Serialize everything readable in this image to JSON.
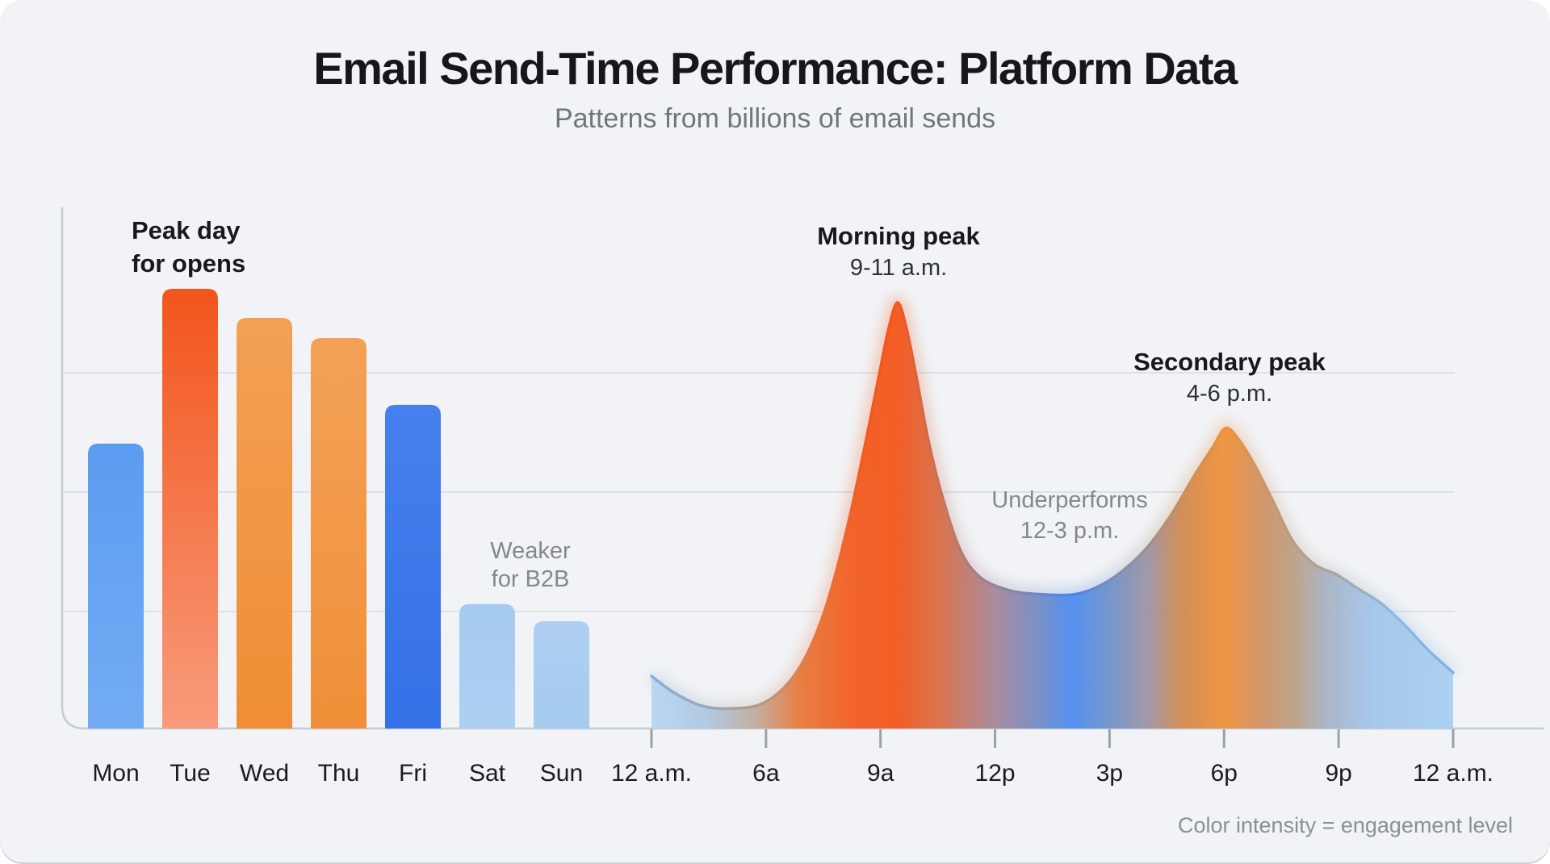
{
  "header": {
    "title": "Email Send-Time Performance: Platform Data",
    "subtitle": "Patterns from billions of email sends"
  },
  "footnote": "Color intensity = engagement level",
  "palette": {
    "background": "#F1F3F6",
    "grid": "#DDE0E6",
    "axis": "#C6CBD3",
    "tick": "#99A1AB",
    "bar_gradients": {
      "Mon": [
        "#5B9CF1",
        "#73ABF4"
      ],
      "Tue": [
        "#F2551C",
        "#F89B7B"
      ],
      "Wed": [
        "#F3A055",
        "#EF8E35"
      ],
      "Thu": [
        "#F3A157",
        "#F09038"
      ],
      "Fri": [
        "#4680EE",
        "#3471E6"
      ],
      "Sat": [
        "#A6CBF0",
        "#ADD0F2"
      ],
      "Sun": [
        "#AECFF2",
        "#A5CBEF"
      ]
    },
    "area_fill_stops": [
      [
        0,
        "#B7D6F3"
      ],
      [
        0.07,
        "#AFC8E2"
      ],
      [
        0.13,
        "#C2AC9C"
      ],
      [
        0.185,
        "#E97A3C"
      ],
      [
        0.255,
        "#F15D22"
      ],
      [
        0.306,
        "#F4581E"
      ],
      [
        0.36,
        "#D96F48"
      ],
      [
        0.43,
        "#A7889C"
      ],
      [
        0.475,
        "#7D8CBE"
      ],
      [
        0.525,
        "#4E8DF0"
      ],
      [
        0.565,
        "#6B93CF"
      ],
      [
        0.62,
        "#9F94A4"
      ],
      [
        0.66,
        "#D08B52"
      ],
      [
        0.715,
        "#F0923C"
      ],
      [
        0.76,
        "#D29366"
      ],
      [
        0.8,
        "#BCA184"
      ],
      [
        0.84,
        "#A9B3C2"
      ],
      [
        0.9,
        "#A3C6EA"
      ],
      [
        1,
        "#A9D0F2"
      ]
    ],
    "area_stroke_stops": [
      [
        0,
        "#85AEDC"
      ],
      [
        0.07,
        "#9FA8B8"
      ],
      [
        0.13,
        "#B59A8C"
      ],
      [
        0.2,
        "#E8793F"
      ],
      [
        0.27,
        "#F1591F"
      ],
      [
        0.306,
        "#F2561C"
      ],
      [
        0.37,
        "#BE7A66"
      ],
      [
        0.45,
        "#8588B0"
      ],
      [
        0.525,
        "#4A85E8"
      ],
      [
        0.58,
        "#7E8FB6"
      ],
      [
        0.65,
        "#C08F62"
      ],
      [
        0.715,
        "#EE9138"
      ],
      [
        0.78,
        "#C29878"
      ],
      [
        0.85,
        "#A8A59E"
      ],
      [
        0.93,
        "#8FBAE4"
      ],
      [
        1,
        "#7FB2E2"
      ]
    ]
  },
  "chart_data": [
    {
      "type": "bar",
      "title": "Email engagement by day of week",
      "categories": [
        "Mon",
        "Tue",
        "Wed",
        "Thu",
        "Fri",
        "Sat",
        "Sun"
      ],
      "values": [
        64.8,
        100,
        93.4,
        88.8,
        73.6,
        28.3,
        24.4
      ],
      "ylim": [
        0,
        100
      ],
      "grid": true,
      "annotations": [
        {
          "lines": [
            "Peak day",
            "for opens"
          ],
          "anchor": "Tue",
          "emphasis": true
        },
        {
          "lines": [
            "Weaker",
            "for B2B"
          ],
          "anchor": "Sat-Sun",
          "emphasis": false
        }
      ]
    },
    {
      "type": "area",
      "title": "Email engagement by time of day",
      "x_tick_labels": [
        "12 a.m.",
        "6a",
        "9a",
        "12p",
        "3p",
        "6p",
        "9p",
        "12 a.m."
      ],
      "ylim": [
        0,
        100
      ],
      "points": [
        [
          0.0,
          12.3
        ],
        [
          0.03,
          8.2
        ],
        [
          0.065,
          5.2
        ],
        [
          0.1,
          4.7
        ],
        [
          0.135,
          5.6
        ],
        [
          0.165,
          9.5
        ],
        [
          0.19,
          16.0
        ],
        [
          0.213,
          26.0
        ],
        [
          0.232,
          38.0
        ],
        [
          0.25,
          52.0
        ],
        [
          0.268,
          68.0
        ],
        [
          0.285,
          84.0
        ],
        [
          0.296,
          94.0
        ],
        [
          0.307,
          100.0
        ],
        [
          0.318,
          94.0
        ],
        [
          0.33,
          83.0
        ],
        [
          0.345,
          68.0
        ],
        [
          0.362,
          55.0
        ],
        [
          0.385,
          42.0
        ],
        [
          0.41,
          35.5
        ],
        [
          0.445,
          32.5
        ],
        [
          0.478,
          31.6
        ],
        [
          0.524,
          31.4
        ],
        [
          0.557,
          33.3
        ],
        [
          0.587,
          36.9
        ],
        [
          0.617,
          42.2
        ],
        [
          0.647,
          49.8
        ],
        [
          0.677,
          59.3
        ],
        [
          0.7,
          66.0
        ],
        [
          0.716,
          70.5
        ],
        [
          0.732,
          68.0
        ],
        [
          0.752,
          62.0
        ],
        [
          0.775,
          53.5
        ],
        [
          0.8,
          44.0
        ],
        [
          0.827,
          38.5
        ],
        [
          0.854,
          36.2
        ],
        [
          0.88,
          33.0
        ],
        [
          0.91,
          29.4
        ],
        [
          0.94,
          24.2
        ],
        [
          0.97,
          18.2
        ],
        [
          1.0,
          13.1
        ]
      ],
      "annotations": [
        {
          "lines": [
            "Morning peak",
            "9-11 a.m."
          ],
          "anchor": "9-11 a.m.",
          "emphasis": true
        },
        {
          "lines": [
            "Underperforms",
            "12-3 p.m."
          ],
          "anchor": "12-3 p.m.",
          "emphasis": false
        },
        {
          "lines": [
            "Secondary peak",
            "4-6 p.m."
          ],
          "anchor": "4-6 p.m.",
          "emphasis": true
        }
      ]
    }
  ]
}
